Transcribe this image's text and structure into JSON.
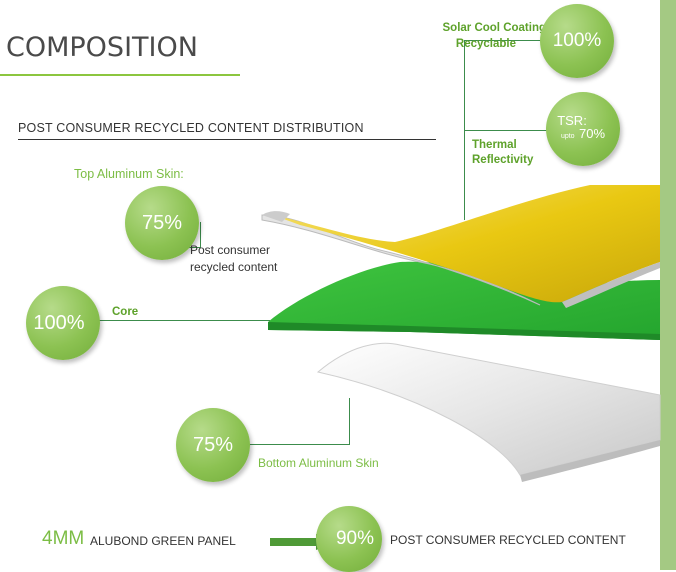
{
  "heading": {
    "title": "COMPOSITION",
    "subtitle": "POST CONSUMER RECYCLED CONTENT DISTRIBUTION"
  },
  "top_skin": {
    "label": "Top Aluminum Skin:",
    "percent": "75%",
    "desc_line1": "Post consumer",
    "desc_line2": "recycled content"
  },
  "core": {
    "percent": "100%",
    "label": "Core"
  },
  "bottom_skin": {
    "percent": "75%",
    "label": "Bottom Aluminum Skin"
  },
  "coating": {
    "line1": "Solar Cool Coating",
    "line2": "Recyclable",
    "percent": "100%"
  },
  "thermal": {
    "tsr": "TSR:",
    "upto": "upto",
    "percent": "70%",
    "line1": "Thermal",
    "line2": "Reflectivity"
  },
  "footer": {
    "size": "4MM",
    "product": "ALUBOND GREEN PANEL",
    "percent": "90%",
    "text": "POST CONSUMER RECYCLED CONTENT"
  },
  "colors": {
    "accent": "#8cc63f",
    "coating": "#f0d21e",
    "core": "#3cc13c",
    "bottom": "#e8e8e8",
    "sidebar": "#a4c983"
  }
}
